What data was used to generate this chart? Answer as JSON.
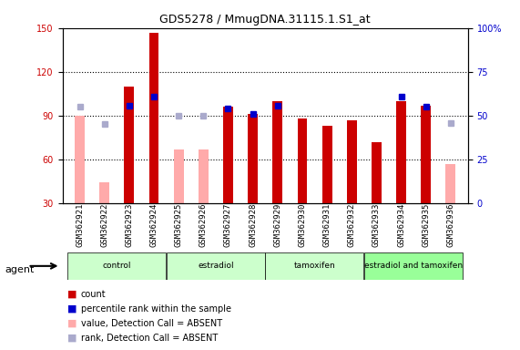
{
  "title": "GDS5278 / MmugDNA.31115.1.S1_at",
  "samples": [
    "GSM362921",
    "GSM362922",
    "GSM362923",
    "GSM362924",
    "GSM362925",
    "GSM362926",
    "GSM362927",
    "GSM362928",
    "GSM362929",
    "GSM362930",
    "GSM362931",
    "GSM362932",
    "GSM362933",
    "GSM362934",
    "GSM362935",
    "GSM362936"
  ],
  "groups": [
    {
      "label": "control",
      "color": "#ccffcc",
      "start": 0,
      "end": 4
    },
    {
      "label": "estradiol",
      "color": "#ccffcc",
      "start": 4,
      "end": 8
    },
    {
      "label": "tamoxifen",
      "color": "#ccffcc",
      "start": 8,
      "end": 12
    },
    {
      "label": "estradiol and tamoxifen",
      "color": "#99ff99",
      "start": 12,
      "end": 16
    }
  ],
  "count_values": [
    null,
    null,
    110,
    147,
    null,
    null,
    96,
    91,
    100,
    88,
    83,
    87,
    72,
    100,
    97,
    null
  ],
  "count_absent": [
    90,
    44,
    null,
    null,
    67,
    67,
    null,
    null,
    null,
    null,
    null,
    null,
    null,
    null,
    null,
    57
  ],
  "rank_values": [
    null,
    null,
    97,
    103,
    null,
    null,
    95,
    91,
    97,
    null,
    null,
    null,
    null,
    103,
    96,
    null
  ],
  "rank_absent": [
    96,
    84,
    null,
    null,
    90,
    90,
    null,
    null,
    null,
    null,
    null,
    null,
    null,
    null,
    null,
    85
  ],
  "ylim_left": [
    30,
    150
  ],
  "ylim_right": [
    0,
    100
  ],
  "yticks_left": [
    30,
    60,
    90,
    120,
    150
  ],
  "yticks_right": [
    0,
    25,
    50,
    75,
    100
  ],
  "count_color": "#cc0000",
  "count_absent_color": "#ffaaaa",
  "rank_color": "#0000cc",
  "rank_absent_color": "#aaaacc",
  "bar_width": 0.4,
  "marker_size": 6,
  "agent_label": "agent",
  "legend_items": [
    {
      "color": "#cc0000",
      "marker": "s",
      "label": "count"
    },
    {
      "color": "#0000cc",
      "marker": "s",
      "label": "percentile rank within the sample"
    },
    {
      "color": "#ffaaaa",
      "marker": "s",
      "label": "value, Detection Call = ABSENT"
    },
    {
      "color": "#aaaacc",
      "marker": "s",
      "label": "rank, Detection Call = ABSENT"
    }
  ]
}
